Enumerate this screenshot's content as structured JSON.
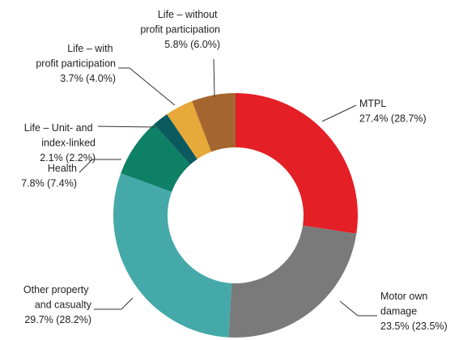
{
  "chart_data": {
    "type": "donut",
    "categories": [
      "MTPL",
      "Motor own damage",
      "Other property and casualty",
      "Health",
      "Life – Unit- and index-linked",
      "Life – with profit participation",
      "Life – without profit participation"
    ],
    "values": [
      27.4,
      23.5,
      29.7,
      7.8,
      2.1,
      3.7,
      5.8
    ],
    "value_labels": [
      "27.4% (28.7%)",
      "23.5% (23.5%)",
      "29.7% (28.2%)",
      "7.8% (7.4%)",
      "2.1% (2.2%)",
      "3.7% (4.0%)",
      "5.8% (6.0%)"
    ],
    "colors": [
      "#e41f26",
      "#7a7a7b",
      "#45a9a9",
      "#0e8066",
      "#0a5a5e",
      "#e6a93a",
      "#a5652f"
    ]
  }
}
